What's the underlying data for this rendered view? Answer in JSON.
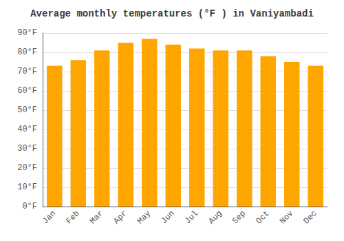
{
  "chart_data": {
    "type": "bar",
    "title": "Average monthly temperatures (°F ) in Vaniyambadi",
    "categories": [
      "Jan",
      "Feb",
      "Mar",
      "Apr",
      "May",
      "Jun",
      "Jul",
      "Aug",
      "Sep",
      "Oct",
      "Nov",
      "Dec"
    ],
    "values": [
      73,
      76,
      81,
      85,
      87,
      84,
      82,
      81,
      81,
      78,
      75,
      73
    ],
    "color": "#FFA500",
    "ylim": [
      0,
      90
    ],
    "yticks": [
      {
        "value": 0,
        "label": "0°F"
      },
      {
        "value": 10,
        "label": "10°F"
      },
      {
        "value": 20,
        "label": "20°F"
      },
      {
        "value": 30,
        "label": "30°F"
      },
      {
        "value": 40,
        "label": "40°F"
      },
      {
        "value": 50,
        "label": "50°F"
      },
      {
        "value": 60,
        "label": "60°F"
      },
      {
        "value": 70,
        "label": "70°F"
      },
      {
        "value": 80,
        "label": "80°F"
      },
      {
        "value": 90,
        "label": "90°F"
      }
    ],
    "grid": true
  }
}
